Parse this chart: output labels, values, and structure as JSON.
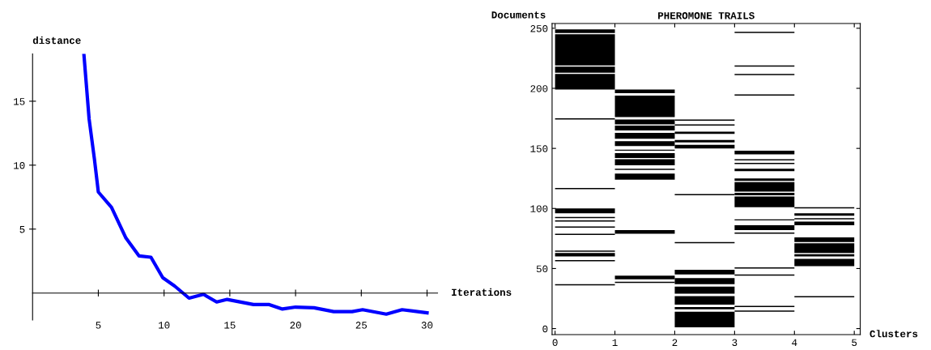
{
  "chart_data": [
    {
      "type": "line",
      "ylabel": "distance",
      "xlabel": "Iterations",
      "x": [
        3.9,
        4.3,
        4.7,
        5,
        6,
        7.1,
        8.1,
        9,
        9.9,
        10.8,
        11.9,
        13,
        14,
        14.8,
        16.8,
        18,
        19,
        20,
        21.4,
        22.9,
        24.3,
        25.1,
        26.9,
        28.1,
        30
      ],
      "series": [
        {
          "color": "#0000ff",
          "values": [
            18.7,
            13.6,
            10.5,
            7.9,
            6.7,
            4.3,
            2.9,
            2.8,
            1.2,
            0.55,
            -0.4,
            -0.1,
            -0.7,
            -0.5,
            -0.9,
            -0.9,
            -1.25,
            -1.1,
            -1.15,
            -1.45,
            -1.45,
            -1.3,
            -1.65,
            -1.3,
            -1.55
          ]
        }
      ],
      "xlim": [
        0,
        30.8
      ],
      "ylim": [
        -2.1,
        18.7
      ],
      "xticks": [
        5,
        10,
        15,
        20,
        25,
        30
      ],
      "yticks": [
        5,
        10,
        15
      ],
      "grid": false,
      "legend": false,
      "marker": "none",
      "line_style": "solid"
    },
    {
      "type": "bar",
      "title": "PHEROMONE TRAILS",
      "ylabel": "Documents",
      "xlabel": "Clusters",
      "x": [
        0.5,
        1.5,
        2.5,
        3.5,
        4.5
      ],
      "series": [
        {
          "color": "#000000",
          "base": [
            199,
            176,
            173,
            246,
            100
          ],
          "values": [
            13,
            18,
            1,
            1,
            1
          ]
        },
        {
          "color": "#000000",
          "base": [
            213,
            196,
            169,
            218,
            94
          ],
          "values": [
            5,
            3,
            1,
            1,
            2
          ]
        },
        {
          "color": "#000000",
          "base": [
            219,
            170,
            162,
            211,
            91
          ],
          "values": [
            26,
            4,
            2,
            1,
            1
          ]
        },
        {
          "color": "#000000",
          "base": [
            246,
            165,
            155,
            194,
            86
          ],
          "values": [
            3,
            4,
            2,
            1,
            3
          ]
        },
        {
          "color": "#000000",
          "base": [
            174,
            158,
            150,
            145,
            72
          ],
          "values": [
            1,
            5,
            3,
            3,
            4
          ]
        },
        {
          "color": "#000000",
          "base": [
            116,
            152,
            111,
            140,
            63
          ],
          "values": [
            1,
            4,
            1,
            1,
            8
          ]
        },
        {
          "color": "#000000",
          "base": [
            96,
            148,
            71,
            137,
            60
          ],
          "values": [
            4,
            1,
            1,
            1,
            2
          ]
        },
        {
          "color": "#000000",
          "base": [
            92,
            142,
            45,
            131,
            52
          ],
          "values": [
            1,
            4,
            4,
            2,
            6
          ]
        },
        {
          "color": "#000000",
          "base": [
            89,
            136,
            37,
            123,
            26
          ],
          "values": [
            1,
            5,
            5,
            2,
            1
          ]
        },
        {
          "color": "#000000",
          "base": [
            84,
            132,
            29,
            114,
            null
          ],
          "values": [
            1,
            1,
            6,
            8,
            null
          ]
        },
        {
          "color": "#000000",
          "base": [
            78,
            124,
            20,
            111,
            null
          ],
          "values": [
            1,
            5,
            7,
            2,
            null
          ]
        },
        {
          "color": "#000000",
          "base": [
            64,
            79,
            16,
            101,
            null
          ],
          "values": [
            1,
            3,
            2,
            9,
            null
          ]
        },
        {
          "color": "#000000",
          "base": [
            60,
            41,
            1,
            90,
            null
          ],
          "values": [
            3,
            3,
            13,
            1,
            null
          ]
        },
        {
          "color": "#000000",
          "base": [
            56,
            38,
            null,
            82,
            null
          ],
          "values": [
            1,
            1,
            null,
            4,
            null
          ]
        },
        {
          "color": "#000000",
          "base": [
            36,
            null,
            null,
            79,
            null
          ],
          "values": [
            1,
            null,
            null,
            1,
            null
          ]
        },
        {
          "color": "#000000",
          "base": [
            null,
            null,
            null,
            50,
            null
          ],
          "values": [
            null,
            null,
            null,
            1,
            null
          ]
        },
        {
          "color": "#000000",
          "base": [
            null,
            null,
            null,
            44,
            null
          ],
          "values": [
            null,
            null,
            null,
            1,
            null
          ]
        },
        {
          "color": "#000000",
          "base": [
            null,
            null,
            null,
            18,
            null
          ],
          "values": [
            null,
            null,
            null,
            1,
            null
          ]
        },
        {
          "color": "#000000",
          "base": [
            null,
            null,
            null,
            14,
            null
          ],
          "values": [
            null,
            null,
            null,
            1,
            null
          ]
        }
      ],
      "xlim": [
        -0.05,
        5.1
      ],
      "ylim": [
        -5,
        254
      ],
      "xticks": [
        0,
        1,
        2,
        3,
        4,
        5
      ],
      "yticks": [
        0,
        50,
        100,
        150,
        200,
        250
      ],
      "grid": false,
      "legend": false
    }
  ]
}
